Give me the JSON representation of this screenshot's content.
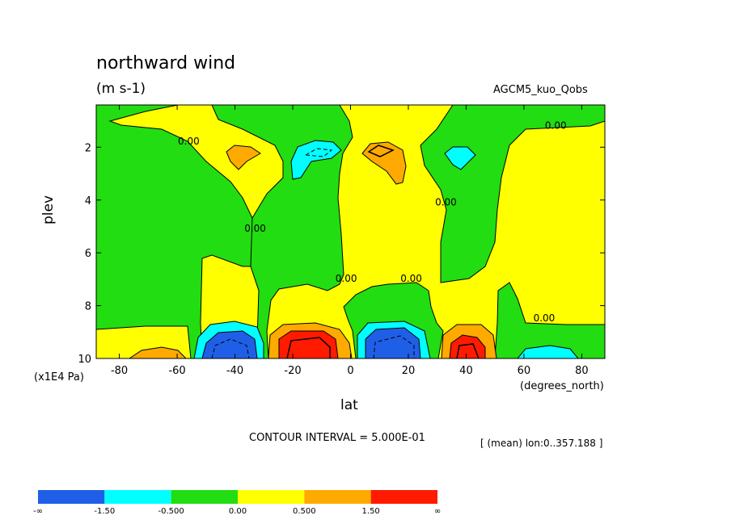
{
  "title": "northward wind",
  "units": "(m s-1)",
  "model": "AGCM5_kuo_Qobs",
  "x_axis_label": "lat",
  "x_axis_unit": "(degrees_north)",
  "y_axis_label": "plev",
  "y_axis_multiplier": "(x1E4 Pa)",
  "contour_interval": "CONTOUR INTERVAL = 5.000E-01",
  "mean_note": "[ (mean) lon:0..357.188 ]",
  "chart_data": {
    "type": "heatmap",
    "title": "northward wind",
    "subtitle": "(m s-1)",
    "xlabel": "lat",
    "ylabel": "plev",
    "xlim": [
      -88,
      88
    ],
    "ylim": [
      10,
      0.4
    ],
    "y_inverted": true,
    "x_ticks": [
      -80,
      -60,
      -40,
      -20,
      0,
      20,
      40,
      60,
      80
    ],
    "x_tick_labels": [
      "-80",
      "-60",
      "-40",
      "-20",
      "0",
      "20",
      "40",
      "60",
      "80"
    ],
    "y_ticks": [
      2,
      4,
      6,
      8,
      10
    ],
    "y_tick_labels": [
      "2",
      "4",
      "6",
      "8",
      "10"
    ],
    "contour_labels": [
      {
        "text": "0.00",
        "x": -56,
        "y": 1.9
      },
      {
        "text": "0.00",
        "x": -33,
        "y": 5.2
      },
      {
        "text": "0.00",
        "x": -1.5,
        "y": 7.1
      },
      {
        "text": "0.00",
        "x": 33,
        "y": 4.2
      },
      {
        "text": "0.00",
        "x": 21,
        "y": 7.1
      },
      {
        "text": "0.00",
        "x": 71,
        "y": 1.3
      },
      {
        "text": "0.00",
        "x": 67,
        "y": 8.6
      }
    ],
    "colorbar": {
      "colors": [
        "#1f5fe8",
        "#00ffff",
        "#22dd11",
        "#ffff00",
        "#ffaa00",
        "#ff1a00"
      ],
      "labels": [
        "-∞",
        "-1.50",
        "-0.500",
        "0.00",
        "0.500",
        "1.50",
        "∞"
      ]
    }
  }
}
